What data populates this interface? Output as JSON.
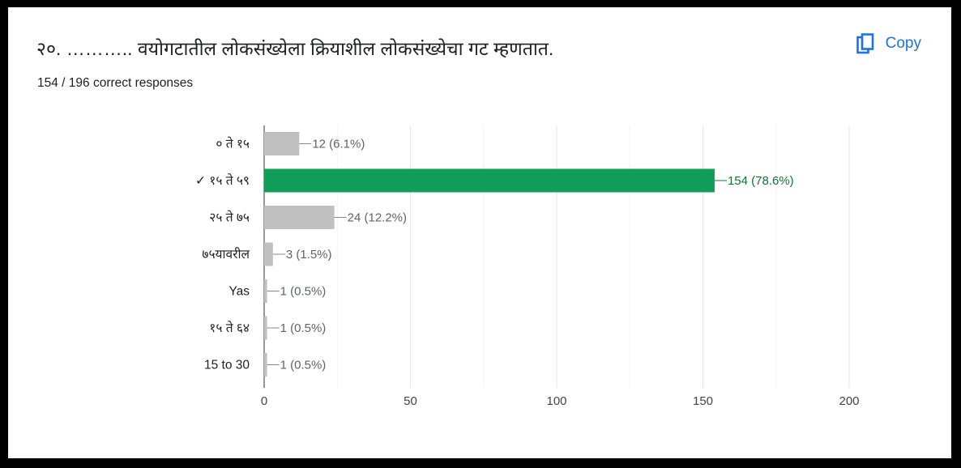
{
  "question": {
    "title": "२०. ……….. वयोगटातील लोकसंख्येला क्रियाशील लोकसंख्येचा गट म्हणतात.",
    "responses_text": "154 / 196 correct responses",
    "copy_label": "Copy",
    "copy_icon": "copy-icon"
  },
  "colors": {
    "correct": "#109d58",
    "incorrect": "#c0c0c0",
    "copy": "#1a73e8",
    "correct_label": "#137333",
    "label": "#5f6368"
  },
  "chart_data": {
    "type": "bar",
    "orientation": "horizontal",
    "categories": [
      "० ते १५",
      "✓ १५ ते ५९",
      "२५ ते ७५",
      "७५यावरील",
      "Yas",
      "१५ ते ६४",
      "15 to 30"
    ],
    "values": [
      12,
      154,
      24,
      3,
      1,
      1,
      1
    ],
    "data_labels": [
      "12 (6.1%)",
      "154 (78.6%)",
      "24 (12.2%)",
      "3 (1.5%)",
      "1 (0.5%)",
      "1 (0.5%)",
      "1 (0.5%)"
    ],
    "correct_index": 1,
    "xlim": [
      0,
      200
    ],
    "xticks": [
      0,
      50,
      100,
      150,
      200
    ],
    "grid": true
  }
}
